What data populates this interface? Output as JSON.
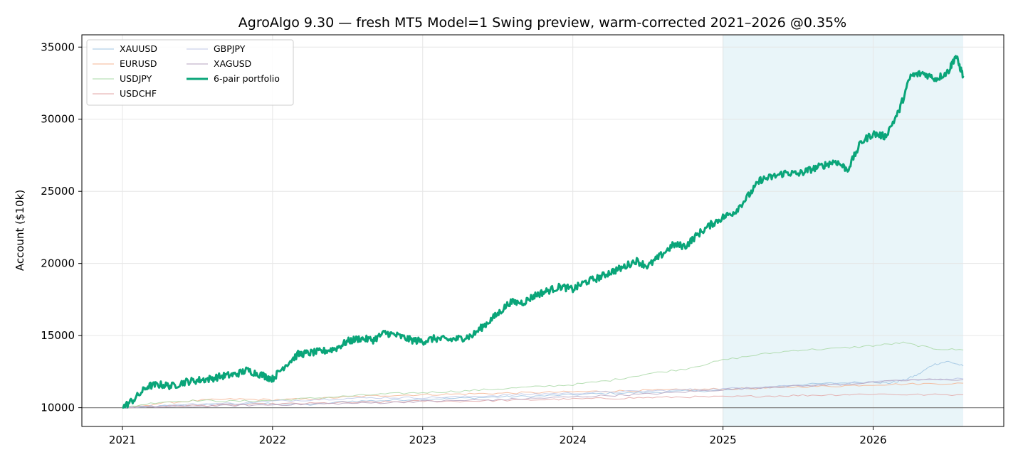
{
  "chart_data": {
    "type": "line",
    "title": "AgroAlgo 9.30 — fresh MT5 Model=1 Swing preview, warm-corrected 2021–2026 @0.35%",
    "xlabel": "",
    "ylabel": "Account ($10k)",
    "xlim": [
      2020.73,
      2026.87
    ],
    "ylim": [
      8700,
      35850
    ],
    "x_ticks": [
      {
        "value": 2021,
        "label": "2021"
      },
      {
        "value": 2022,
        "label": "2022"
      },
      {
        "value": 2023,
        "label": "2023"
      },
      {
        "value": 2024,
        "label": "2024"
      },
      {
        "value": 2025,
        "label": "2025"
      },
      {
        "value": 2026,
        "label": "2026"
      }
    ],
    "y_ticks": [
      {
        "value": 10000,
        "label": "10000"
      },
      {
        "value": 15000,
        "label": "15000"
      },
      {
        "value": 20000,
        "label": "20000"
      },
      {
        "value": 25000,
        "label": "25000"
      },
      {
        "value": 30000,
        "label": "30000"
      },
      {
        "value": 35000,
        "label": "35000"
      }
    ],
    "grid": true,
    "baseline": 10000,
    "shaded_region": {
      "x_start": 2025.0,
      "x_end": 2026.6,
      "color": "#e9f5f9"
    },
    "legend_position": "top-left",
    "legend_columns": 2,
    "series": [
      {
        "name": "XAUUSD",
        "color": "#9ec3e2",
        "width": 1,
        "x": [
          2021.0,
          2021.25,
          2021.5,
          2021.75,
          2022.0,
          2022.25,
          2022.5,
          2022.75,
          2023.0,
          2023.25,
          2023.5,
          2023.75,
          2024.0,
          2024.25,
          2024.5,
          2024.75,
          2025.0,
          2025.25,
          2025.5,
          2025.75,
          2026.0,
          2026.1,
          2026.2,
          2026.3,
          2026.4,
          2026.5,
          2026.6
        ],
        "y": [
          10000,
          10100,
          10200,
          10250,
          10300,
          10200,
          10450,
          10500,
          10600,
          10650,
          10750,
          10800,
          10900,
          11000,
          11050,
          11150,
          11200,
          11400,
          11600,
          11700,
          11800,
          11700,
          11900,
          12300,
          13000,
          13200,
          12900
        ]
      },
      {
        "name": "EURUSD",
        "color": "#f4b493",
        "width": 1,
        "x": [
          2021.0,
          2021.25,
          2021.5,
          2021.75,
          2022.0,
          2022.25,
          2022.5,
          2022.75,
          2023.0,
          2023.25,
          2023.5,
          2023.75,
          2024.0,
          2024.25,
          2024.5,
          2024.75,
          2025.0,
          2025.25,
          2025.5,
          2025.75,
          2026.0,
          2026.3,
          2026.6
        ],
        "y": [
          10000,
          10300,
          10500,
          10600,
          10550,
          10600,
          10750,
          10850,
          10900,
          10950,
          11000,
          11050,
          11100,
          11150,
          11200,
          11250,
          11300,
          11350,
          11450,
          11500,
          11600,
          11650,
          11700
        ]
      },
      {
        "name": "USDJPY",
        "color": "#a9d8a6",
        "width": 1,
        "x": [
          2021.0,
          2021.25,
          2021.5,
          2021.75,
          2022.0,
          2022.25,
          2022.5,
          2022.75,
          2023.0,
          2023.25,
          2023.5,
          2023.75,
          2024.0,
          2024.25,
          2024.5,
          2024.75,
          2025.0,
          2025.25,
          2025.5,
          2025.75,
          2026.0,
          2026.2,
          2026.4,
          2026.6
        ],
        "y": [
          10000,
          10400,
          10500,
          10450,
          10500,
          10650,
          10800,
          10950,
          11050,
          11150,
          11300,
          11450,
          11600,
          11900,
          12350,
          12700,
          13300,
          13700,
          14000,
          14100,
          14300,
          14500,
          14100,
          14000
        ]
      },
      {
        "name": "USDCHF",
        "color": "#e3a6a6",
        "width": 1,
        "x": [
          2021.0,
          2021.25,
          2021.5,
          2021.75,
          2022.0,
          2022.25,
          2022.5,
          2022.75,
          2023.0,
          2023.25,
          2023.5,
          2023.75,
          2024.0,
          2024.25,
          2024.5,
          2024.75,
          2025.0,
          2025.25,
          2025.5,
          2025.75,
          2026.0,
          2026.3,
          2026.6
        ],
        "y": [
          10000,
          10100,
          10150,
          10200,
          10250,
          10300,
          10350,
          10400,
          10450,
          10450,
          10500,
          10550,
          10600,
          10650,
          10700,
          10750,
          10750,
          10800,
          10850,
          10900,
          10950,
          10900,
          10900
        ]
      },
      {
        "name": "GBPJPY",
        "color": "#bcc5e6",
        "width": 1,
        "x": [
          2021.0,
          2021.25,
          2021.5,
          2021.75,
          2022.0,
          2022.25,
          2022.5,
          2022.75,
          2023.0,
          2023.25,
          2023.5,
          2023.75,
          2024.0,
          2024.25,
          2024.5,
          2024.75,
          2025.0,
          2025.25,
          2025.5,
          2025.75,
          2026.0,
          2026.3,
          2026.6
        ],
        "y": [
          10000,
          10150,
          10250,
          10300,
          10450,
          10550,
          10650,
          10700,
          10700,
          10750,
          10850,
          10950,
          11000,
          11100,
          11150,
          11250,
          11300,
          11450,
          11550,
          11650,
          11750,
          11950,
          12000
        ]
      },
      {
        "name": "XAGUSD",
        "color": "#b6a3bf",
        "width": 1,
        "x": [
          2021.0,
          2021.25,
          2021.5,
          2021.75,
          2022.0,
          2022.25,
          2022.5,
          2022.75,
          2023.0,
          2023.25,
          2023.5,
          2023.75,
          2024.0,
          2024.25,
          2024.5,
          2024.75,
          2025.0,
          2025.25,
          2025.5,
          2025.75,
          2026.0,
          2026.3,
          2026.6
        ],
        "y": [
          10000,
          10050,
          10100,
          10150,
          10200,
          10250,
          10300,
          10350,
          10450,
          10500,
          10550,
          10650,
          10750,
          10850,
          10950,
          11100,
          11250,
          11400,
          11500,
          11600,
          11750,
          11950,
          11950
        ]
      },
      {
        "name": "6-pair portfolio",
        "color": "#0aa579",
        "width": 3,
        "x": [
          2021.0,
          2021.08,
          2021.17,
          2021.25,
          2021.33,
          2021.42,
          2021.5,
          2021.58,
          2021.67,
          2021.75,
          2021.83,
          2021.92,
          2022.0,
          2022.08,
          2022.17,
          2022.25,
          2022.33,
          2022.42,
          2022.5,
          2022.58,
          2022.67,
          2022.75,
          2022.83,
          2022.92,
          2023.0,
          2023.08,
          2023.17,
          2023.25,
          2023.33,
          2023.42,
          2023.5,
          2023.58,
          2023.67,
          2023.75,
          2023.83,
          2023.92,
          2024.0,
          2024.08,
          2024.17,
          2024.25,
          2024.33,
          2024.42,
          2024.5,
          2024.58,
          2024.67,
          2024.75,
          2024.83,
          2024.92,
          2025.0,
          2025.08,
          2025.17,
          2025.25,
          2025.33,
          2025.42,
          2025.5,
          2025.58,
          2025.67,
          2025.75,
          2025.83,
          2025.92,
          2026.0,
          2026.08,
          2026.17,
          2026.25,
          2026.33,
          2026.42,
          2026.5,
          2026.55,
          2026.6
        ],
        "y": [
          10000,
          10600,
          11500,
          11600,
          11500,
          11800,
          11900,
          12000,
          12200,
          12300,
          12600,
          12300,
          12000,
          12900,
          13700,
          13800,
          13900,
          14100,
          14600,
          14800,
          14700,
          15200,
          15000,
          14700,
          14600,
          14800,
          14700,
          14800,
          15000,
          15800,
          16500,
          17300,
          17300,
          17800,
          18100,
          18400,
          18200,
          18700,
          19000,
          19400,
          19700,
          20200,
          19800,
          20500,
          21300,
          21200,
          22000,
          22700,
          23200,
          23600,
          24700,
          25800,
          26000,
          26300,
          26200,
          26500,
          26800,
          27100,
          26500,
          28400,
          29000,
          28800,
          30500,
          33000,
          33200,
          32800,
          33300,
          34400,
          33000
        ]
      }
    ]
  }
}
